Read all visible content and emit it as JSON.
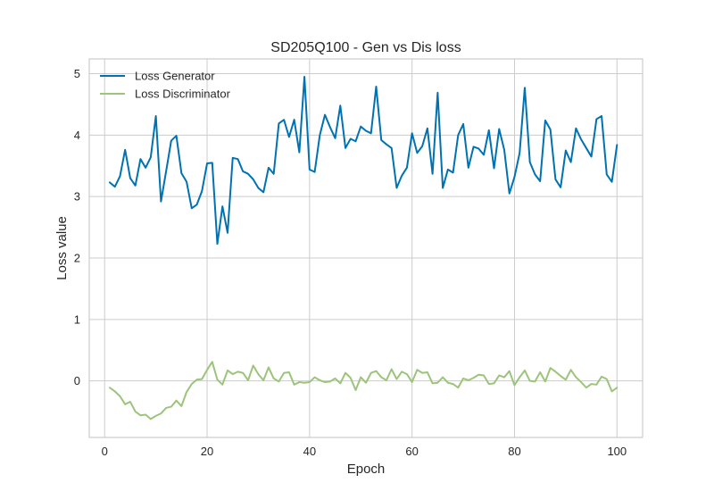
{
  "chart_data": {
    "type": "line",
    "title": "SD205Q100 - Gen vs Dis loss",
    "xlabel": "Epoch",
    "ylabel": "Loss value",
    "xlim": [
      -3,
      105
    ],
    "ylim": [
      -0.92,
      5.24
    ],
    "xticks": [
      0,
      20,
      40,
      60,
      80,
      100
    ],
    "yticks": [
      0,
      1,
      2,
      3,
      4,
      5
    ],
    "grid": true,
    "legend": "top-left",
    "x": [
      1,
      2,
      3,
      4,
      5,
      6,
      7,
      8,
      9,
      10,
      11,
      12,
      13,
      14,
      15,
      16,
      17,
      18,
      19,
      20,
      21,
      22,
      23,
      24,
      25,
      26,
      27,
      28,
      29,
      30,
      31,
      32,
      33,
      34,
      35,
      36,
      37,
      38,
      39,
      40,
      41,
      42,
      43,
      44,
      45,
      46,
      47,
      48,
      49,
      50,
      51,
      52,
      53,
      54,
      55,
      56,
      57,
      58,
      59,
      60,
      61,
      62,
      63,
      64,
      65,
      66,
      67,
      68,
      69,
      70,
      71,
      72,
      73,
      74,
      75,
      76,
      77,
      78,
      79,
      80,
      81,
      82,
      83,
      84,
      85,
      86,
      87,
      88,
      89,
      90,
      91,
      92,
      93,
      94,
      95,
      96,
      97,
      98,
      99,
      100
    ],
    "series": [
      {
        "name": "Loss Generator",
        "color": "#0072b2",
        "values": [
          3.23,
          3.16,
          3.33,
          3.76,
          3.3,
          3.18,
          3.61,
          3.47,
          3.64,
          4.31,
          2.92,
          3.41,
          3.91,
          3.99,
          3.38,
          3.24,
          2.81,
          2.87,
          3.09,
          3.54,
          3.55,
          2.23,
          2.84,
          2.41,
          3.63,
          3.61,
          3.41,
          3.37,
          3.28,
          3.14,
          3.07,
          3.47,
          3.37,
          4.19,
          4.25,
          3.97,
          4.25,
          3.72,
          4.95,
          3.44,
          3.4,
          4.0,
          4.33,
          4.13,
          3.95,
          4.48,
          3.79,
          3.94,
          3.9,
          4.14,
          4.07,
          4.03,
          4.79,
          3.92,
          3.85,
          3.79,
          3.14,
          3.34,
          3.47,
          4.03,
          3.71,
          3.82,
          4.11,
          3.37,
          4.69,
          3.14,
          3.44,
          3.39,
          4.0,
          4.18,
          3.47,
          3.81,
          3.78,
          3.68,
          4.08,
          3.46,
          4.1,
          3.76,
          3.05,
          3.32,
          3.71,
          4.77,
          3.56,
          3.36,
          3.25,
          4.24,
          4.09,
          3.28,
          3.15,
          3.75,
          3.56,
          4.11,
          3.93,
          3.79,
          3.65,
          4.26,
          4.31,
          3.36,
          3.24,
          3.84
        ]
      },
      {
        "name": "Loss Discriminator",
        "color": "#9cc47a",
        "values": [
          -0.11,
          -0.17,
          -0.25,
          -0.38,
          -0.34,
          -0.5,
          -0.56,
          -0.55,
          -0.62,
          -0.57,
          -0.53,
          -0.44,
          -0.42,
          -0.32,
          -0.41,
          -0.18,
          -0.05,
          0.02,
          0.03,
          0.18,
          0.31,
          0.02,
          -0.06,
          0.17,
          0.11,
          0.15,
          0.13,
          0.01,
          0.25,
          0.11,
          0.01,
          0.22,
          0.04,
          -0.01,
          0.13,
          0.14,
          -0.06,
          -0.02,
          -0.03,
          -0.02,
          0.06,
          0.01,
          -0.02,
          -0.01,
          0.04,
          -0.04,
          0.13,
          0.05,
          -0.15,
          0.06,
          -0.03,
          0.13,
          0.16,
          0.06,
          0.01,
          0.19,
          0.03,
          0.15,
          0.11,
          -0.02,
          0.18,
          0.13,
          0.14,
          -0.04,
          -0.03,
          0.06,
          -0.03,
          -0.05,
          -0.11,
          0.04,
          0.01,
          0.05,
          0.1,
          0.09,
          -0.05,
          -0.04,
          0.09,
          0.06,
          0.16,
          -0.07,
          0.06,
          0.17,
          0.0,
          -0.01,
          0.14,
          -0.01,
          0.21,
          0.15,
          0.08,
          0.02,
          0.18,
          0.06,
          -0.02,
          -0.11,
          -0.05,
          -0.06,
          0.07,
          0.03,
          -0.17,
          -0.11
        ]
      }
    ]
  }
}
